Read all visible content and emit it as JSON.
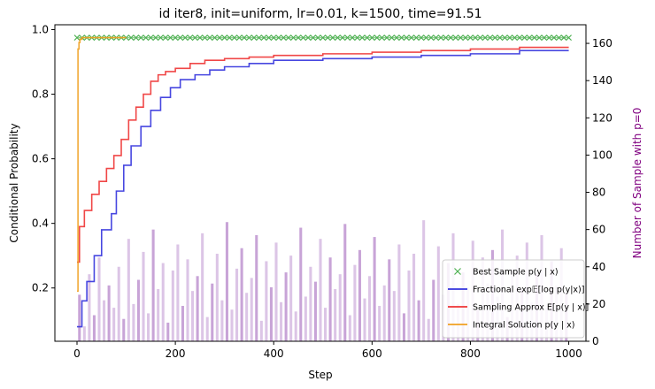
{
  "chart_data": {
    "type": "line",
    "title": "id iter8, init=uniform, lr=0.01, k=1500, time=91.51",
    "xlabel": "Step",
    "ylabel": "Conditional Probability",
    "y2label": "Number of Sample with p=0",
    "xlim": [
      -45,
      1035
    ],
    "ylim": [
      0.035,
      1.015
    ],
    "y2lim": [
      0,
      170
    ],
    "xticks": [
      0,
      200,
      400,
      600,
      800,
      1000
    ],
    "yticks": [
      0.2,
      0.4,
      0.6,
      0.8,
      1.0
    ],
    "y2ticks": [
      0,
      20,
      40,
      60,
      80,
      100,
      120,
      140,
      160
    ],
    "grid": false,
    "legend_position": "lower right",
    "series": [
      {
        "name": "Best Sample $p(y \\mid x)$",
        "style": "markers-x",
        "color": "#4caf50",
        "x": [
          0,
          1000
        ],
        "y": [
          0.975,
          0.975
        ],
        "marker_every": 10
      },
      {
        "name": "Fractional $\\exp\\mathbb{E}[\\log p(y|x)]$",
        "style": "step",
        "color": "#3333dd",
        "x": [
          0,
          10,
          20,
          35,
          50,
          70,
          80,
          95,
          110,
          130,
          150,
          170,
          190,
          210,
          240,
          270,
          300,
          350,
          400,
          500,
          600,
          700,
          800,
          900,
          1000
        ],
        "y": [
          0.08,
          0.16,
          0.22,
          0.3,
          0.38,
          0.43,
          0.5,
          0.58,
          0.64,
          0.7,
          0.75,
          0.79,
          0.82,
          0.845,
          0.86,
          0.875,
          0.885,
          0.895,
          0.905,
          0.91,
          0.915,
          0.92,
          0.925,
          0.935,
          0.935
        ]
      },
      {
        "name": "Sampling Approx $E[p(y \\mid x)]$",
        "style": "step",
        "color": "#ee3333",
        "x": [
          0,
          5,
          15,
          30,
          45,
          60,
          75,
          90,
          105,
          120,
          135,
          150,
          165,
          180,
          200,
          230,
          260,
          300,
          350,
          400,
          500,
          600,
          700,
          800,
          900,
          1000
        ],
        "y": [
          0.28,
          0.39,
          0.44,
          0.49,
          0.53,
          0.57,
          0.61,
          0.66,
          0.72,
          0.76,
          0.8,
          0.84,
          0.86,
          0.87,
          0.88,
          0.895,
          0.905,
          0.91,
          0.915,
          0.92,
          0.925,
          0.93,
          0.935,
          0.94,
          0.945,
          0.945
        ]
      },
      {
        "name": "Integral Solution $p(y \\mid x)$",
        "style": "step",
        "color": "#f0a020",
        "x": [
          0,
          2,
          4,
          6,
          8,
          10,
          12,
          14,
          16,
          18,
          20,
          25,
          30,
          40,
          60,
          80,
          100
        ],
        "y": [
          0.19,
          0.94,
          0.96,
          0.97,
          0.97,
          0.975,
          0.975,
          0.975,
          0.975,
          0.975,
          0.975,
          0.975,
          0.975,
          0.975,
          0.975,
          0.975,
          0.975
        ]
      }
    ],
    "bars": {
      "name": "Number of Sample with p=0",
      "color": "#9b59b6",
      "axis": "right",
      "x_start": 0,
      "x_step": 10,
      "values": [
        25,
        8,
        36,
        14,
        45,
        22,
        30,
        18,
        40,
        12,
        55,
        20,
        33,
        48,
        15,
        60,
        28,
        42,
        10,
        38,
        52,
        19,
        44,
        27,
        35,
        58,
        13,
        31,
        47,
        22,
        64,
        17,
        39,
        50,
        26,
        34,
        57,
        11,
        43,
        29,
        53,
        21,
        37,
        46,
        16,
        61,
        24,
        40,
        32,
        55,
        18,
        45,
        28,
        36,
        63,
        14,
        41,
        49,
        23,
        35,
        56,
        19,
        30,
        44,
        27,
        52,
        15,
        38,
        47,
        22,
        65,
        12,
        33,
        51,
        25,
        42,
        58,
        20,
        37,
        29,
        54,
        17,
        45,
        31,
        49,
        24,
        60,
        13,
        39,
        46,
        28,
        53,
        21,
        36,
        57,
        18,
        43,
        30,
        50,
        26
      ]
    }
  }
}
